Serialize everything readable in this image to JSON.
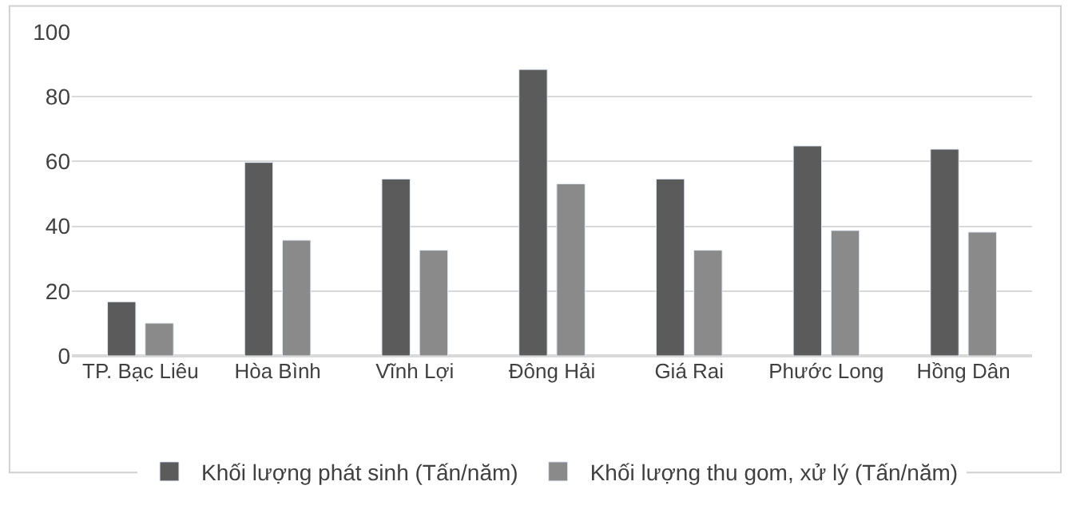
{
  "chart_data": {
    "type": "bar",
    "categories": [
      "TP. Bạc Liêu",
      "Hòa Bình",
      "Vĩnh Lợi",
      "Đông Hải",
      "Giá Rai",
      "Phước Long",
      "Hồng Dân"
    ],
    "series": [
      {
        "name": "Khối lượng phát sinh (Tấn/năm)",
        "color": "#5b5b5b",
        "values": [
          16.7,
          59.7,
          54.6,
          88.4,
          54.6,
          64.8,
          63.8
        ]
      },
      {
        "name": "Khối lượng thu gom, xử lý (Tấn/năm)",
        "color": "#8a8a8a",
        "values": [
          10.1,
          35.7,
          32.6,
          53.1,
          32.6,
          38.7,
          38.2
        ]
      }
    ],
    "ylim": [
      0,
      100
    ],
    "yticks": [
      0,
      20,
      40,
      60,
      80,
      100
    ],
    "grid": "y",
    "legend": "bottom"
  }
}
